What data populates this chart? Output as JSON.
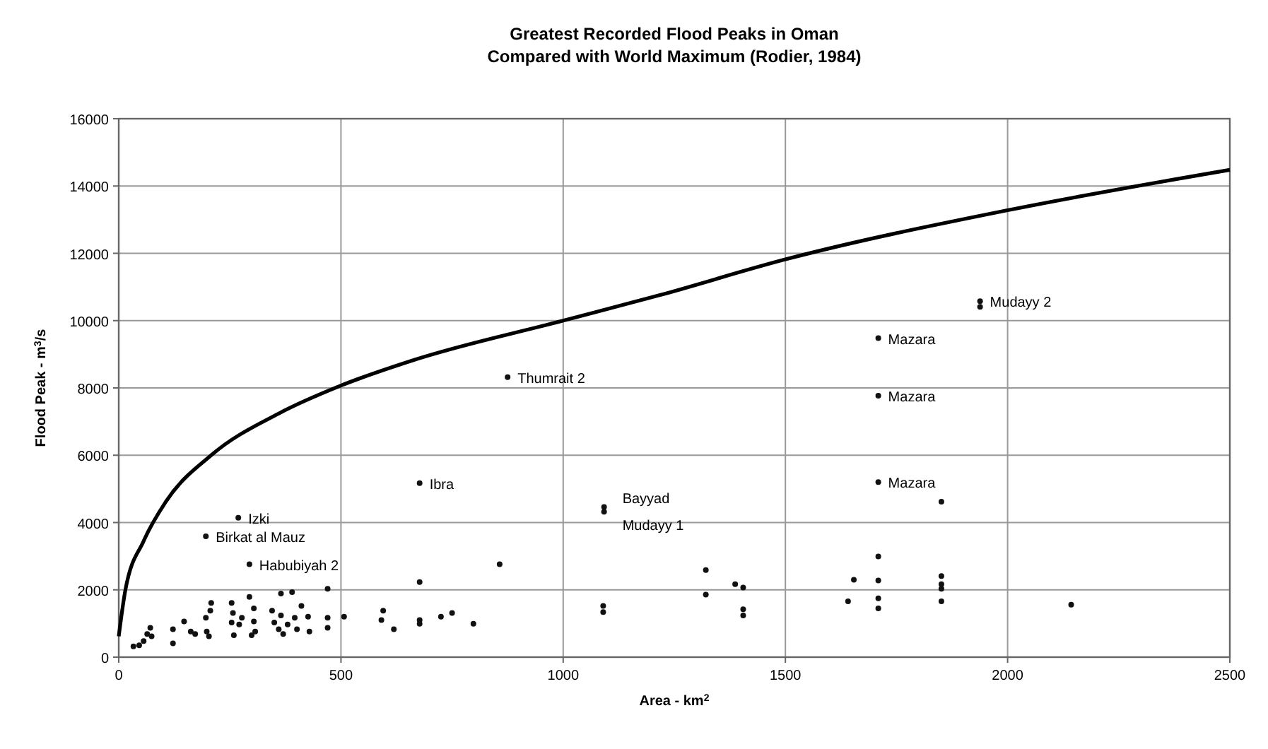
{
  "chart_data": {
    "type": "scatter",
    "title": "Greatest Recorded Flood Peaks in Oman",
    "subtitle": "Compared with World Maximum (Rodier, 1984)",
    "xlabel": "Area - km$^{2}$",
    "ylabel": "Flood Peak - m$^{3}$/s",
    "xlim": [
      0,
      2500
    ],
    "xticks": [
      0,
      500,
      1000,
      1500,
      2000,
      2500
    ],
    "ylim": [
      0,
      16000
    ],
    "yticks": [
      0,
      2000,
      4000,
      6000,
      8000,
      10000,
      12000,
      14000,
      16000
    ],
    "grid": true,
    "marker": "circle",
    "series": [
      {
        "color": "#111111",
        "x": [
          269,
          196,
          294,
          677,
          875,
          1092,
          1092,
          857,
          677,
          470,
          390,
          365,
          1090,
          1090,
          33,
          46,
          56,
          64,
          71,
          74,
          122,
          122,
          147,
          162,
          172,
          196,
          198,
          203,
          206,
          208,
          254,
          257,
          254,
          259,
          271,
          277,
          294,
          304,
          304,
          307,
          299,
          345,
          350,
          360,
          365,
          370,
          380,
          396,
          401,
          411,
          426,
          429,
          470,
          470,
          507,
          595,
          591,
          619,
          677,
          677,
          725,
          750,
          798,
          1321,
          1321,
          1387,
          1405,
          1405,
          1405,
          1654,
          1641,
          1709,
          1709,
          1709,
          1709,
          1851,
          1851,
          1851,
          1851,
          1851,
          1709,
          1709,
          1709,
          1938,
          1938,
          2143
        ],
        "values": [
          4140,
          3590,
          2760,
          5170,
          8320,
          4460,
          4320,
          2760,
          2230,
          2030,
          1930,
          1890,
          1520,
          1340,
          320,
          350,
          480,
          690,
          870,
          620,
          410,
          830,
          1060,
          760,
          690,
          1170,
          760,
          620,
          1380,
          1610,
          1610,
          1310,
          1030,
          650,
          970,
          1170,
          1790,
          1450,
          1060,
          760,
          650,
          1380,
          1030,
          830,
          1240,
          690,
          970,
          1170,
          830,
          1520,
          1200,
          760,
          1170,
          870,
          1200,
          1380,
          1100,
          830,
          1100,
          990,
          1200,
          1310,
          990,
          2590,
          1860,
          2170,
          2070,
          1420,
          1240,
          2300,
          1660,
          2990,
          2280,
          1750,
          1450,
          2410,
          2170,
          2030,
          1660,
          4620,
          9480,
          7770,
          5200,
          10580,
          10410,
          1560
        ]
      },
      {
        "type": "line",
        "color": "#000000",
        "line_style": "solid",
        "marker": "none",
        "x": [
          0,
          15,
          56,
          106,
          208,
          360,
          500,
          664,
          1000,
          1218,
          1500,
          2000,
          2500
        ],
        "values": [
          620,
          2000,
          3450,
          4620,
          6000,
          7240,
          8070,
          8830,
          10000,
          10760,
          11820,
          13280,
          14480
        ]
      }
    ],
    "annotations": [
      {
        "text": "Izki",
        "x": 269,
        "y": 4140
      },
      {
        "text": "Birkat al Mauz",
        "x": 196,
        "y": 3590
      },
      {
        "text": "Habubiyah 2",
        "x": 294,
        "y": 2760
      },
      {
        "text": "Ibra",
        "x": 677,
        "y": 5170
      },
      {
        "text": "Thumrait 2",
        "x": 875,
        "y": 8320
      },
      {
        "text": "Bayyad",
        "x": 1092,
        "y": 4460
      },
      {
        "text": "Mudayy 1",
        "x": 1092,
        "y": 4320
      },
      {
        "text": "Mazara",
        "x": 1709,
        "y": 9480
      },
      {
        "text": "Mazara",
        "x": 1709,
        "y": 7770
      },
      {
        "text": "Mazara",
        "x": 1709,
        "y": 5200
      },
      {
        "text": "Mudayy 2",
        "x": 1938,
        "y": 10580
      }
    ]
  }
}
